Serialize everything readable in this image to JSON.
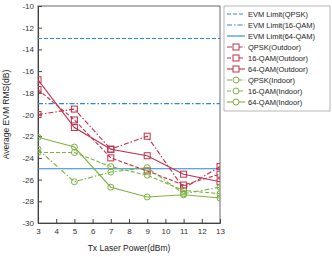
{
  "chart_data": {
    "type": "line",
    "x_label": "Tx Laser Power(dBm)",
    "y_label": "Average EVM RMS(dB)",
    "x": [
      3,
      5,
      7,
      9,
      11,
      13
    ],
    "xlim": [
      3,
      13
    ],
    "xticks": [
      3,
      4,
      5,
      6,
      7,
      8,
      9,
      10,
      11,
      12,
      13
    ],
    "ylim": [
      -30,
      -10
    ],
    "yticks": [
      -30,
      -28,
      -26,
      -24,
      -22,
      -20,
      -18,
      -16,
      -14,
      -12,
      -10
    ],
    "grid": false,
    "legend": "right",
    "series": [
      {
        "name": "EVM Limit(QPSK)",
        "color": "#2e86d6",
        "marker": "none",
        "line_style": "dashed",
        "values": [
          -13,
          -13,
          -13,
          -13,
          -13,
          -13
        ]
      },
      {
        "name": "EVM Limit(16-QAM)",
        "color": "#2e86d6",
        "marker": "none",
        "line_style": "dashdot",
        "values": [
          -19,
          -19,
          -19,
          -19,
          -19,
          -19
        ]
      },
      {
        "name": "EVM Limit(64-QAM)",
        "color": "#2e86d6",
        "marker": "none",
        "line_style": "solid",
        "values": [
          -25,
          -25,
          -25,
          -25,
          -25,
          -25
        ]
      },
      {
        "name": "QPSK(Outdoor)",
        "color": "#c0304a",
        "marker": "square",
        "line_style": "dashdot",
        "values": [
          -20,
          -19.5,
          -23.2,
          -22,
          -26.8,
          -24.8
        ]
      },
      {
        "name": "16-QAM(Outdoor)",
        "color": "#c0304a",
        "marker": "square",
        "line_style": "dashed",
        "values": [
          -17.7,
          -20.5,
          -24,
          -25.2,
          -26.5,
          -25.5
        ]
      },
      {
        "name": "64-QAM(Outdoor)",
        "color": "#c0304a",
        "marker": "square",
        "line_style": "solid",
        "values": [
          -16.8,
          -21.2,
          -23.2,
          -23.8,
          -25.5,
          -26.2
        ]
      },
      {
        "name": "QPSK(Indoor)",
        "color": "#7cb342",
        "marker": "circle",
        "line_style": "dashdot",
        "values": [
          -23.2,
          -26.2,
          -25.3,
          -24.9,
          -27.3,
          -26.7
        ]
      },
      {
        "name": "16-QAM(Indoor)",
        "color": "#7cb342",
        "marker": "circle",
        "line_style": "dashed",
        "values": [
          -23.5,
          -23.5,
          -24.8,
          -25.6,
          -27,
          -27.3
        ]
      },
      {
        "name": "64-QAM(Indoor)",
        "color": "#7cb342",
        "marker": "circle",
        "line_style": "solid",
        "values": [
          -22.1,
          -23,
          -26.7,
          -27.6,
          -27.4,
          -27.7
        ]
      }
    ]
  }
}
